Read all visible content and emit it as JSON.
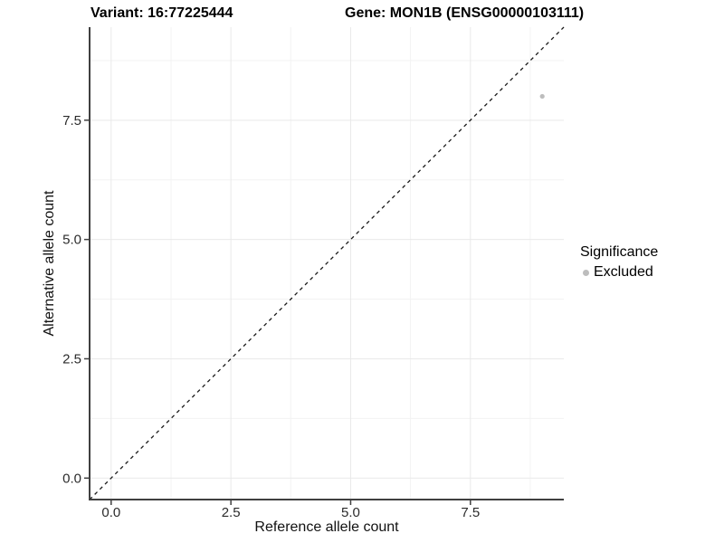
{
  "titles": {
    "variant": "Variant: 16:77225444",
    "gene": "Gene: MON1B (ENSG00000103111)"
  },
  "chart_data": {
    "type": "scatter",
    "xlabel": "Reference allele count",
    "ylabel": "Alternative allele count",
    "xlim": [
      -0.45,
      9.45
    ],
    "ylim": [
      -0.45,
      9.45
    ],
    "xticks": [
      0.0,
      2.5,
      5.0,
      7.5
    ],
    "yticks": [
      0.0,
      2.5,
      5.0,
      7.5
    ],
    "xtick_labels": [
      "0.0",
      "2.5",
      "5.0",
      "7.5"
    ],
    "ytick_labels": [
      "0.0",
      "2.5",
      "5.0",
      "7.5"
    ],
    "minor_xticks": [
      1.25,
      3.75,
      6.25,
      8.75
    ],
    "minor_yticks": [
      1.25,
      3.75,
      6.25,
      8.75
    ],
    "grid": true,
    "series": [
      {
        "name": "Excluded",
        "color": "#bdbdbd",
        "points": [
          {
            "x": 9,
            "y": 8
          }
        ]
      }
    ],
    "reference_line": {
      "type": "identity",
      "style": "dashed",
      "color": "#1a1a1a"
    },
    "legend": {
      "title": "Significance",
      "position": "right",
      "items": [
        {
          "label": "Excluded",
          "color": "#bdbdbd"
        }
      ]
    },
    "colors": {
      "axis_line": "#404040",
      "major_grid": "#e9e9e9",
      "minor_grid": "#f3f3f3",
      "tick_label": "#2b2b2b",
      "background": "#ffffff"
    }
  }
}
